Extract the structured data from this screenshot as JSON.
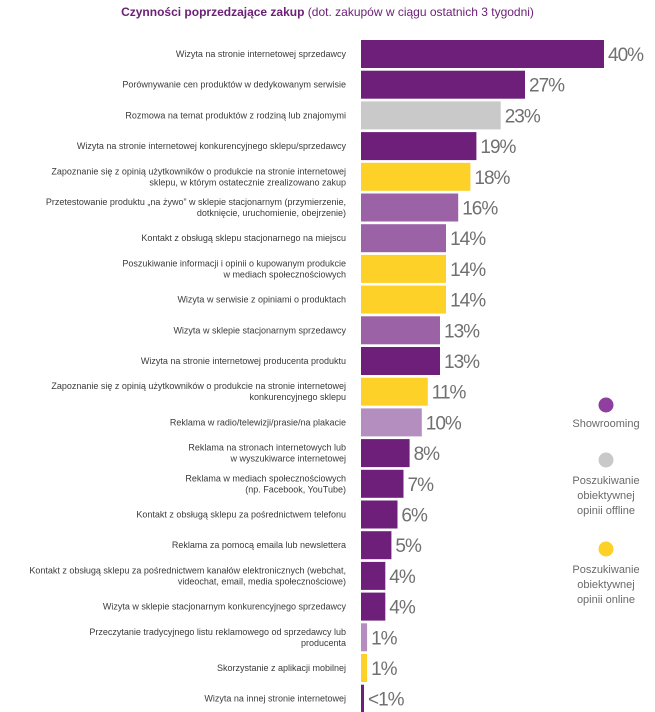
{
  "chart_data": {
    "type": "bar",
    "orientation": "horizontal",
    "title": "Czynności poprzedzające zakup",
    "subtitle": "(dot. zakupów w ciągu ostatnich 3 tygodni)",
    "unit": "%",
    "xlim": [
      0,
      40
    ],
    "colors": {
      "showrooming": "#6d1f7a",
      "showrooming_light": "#9b63a6",
      "showrooming_pale": "#b58ec0",
      "offline": "#c9c9c9",
      "online": "#fdd127"
    },
    "categories": [
      "Wizyta na stronie internetowej sprzedawcy",
      "Porównywanie cen produktów w dedykowanym serwisie",
      "Rozmowa na temat produktów z rodziną lub znajomymi",
      "Wizyta na stronie internetowej konkurencyjnego sklepu/sprzedawcy",
      "Zapoznanie się z opinią użytkowników o produkcie na stronie internetowej\nsklepu, w którym ostatecznie zrealizowano zakup",
      "Przetestowanie produktu „na żywo” w sklepie stacjonarnym (przymierzenie,\ndotknięcie, uruchomienie, obejrzenie)",
      "Kontakt z obsługą sklepu stacjonarnego na miejscu",
      "Poszukiwanie informacji i opinii o kupowanym produkcie\nw mediach społecznościowych",
      "Wizyta w serwisie z opiniami o produktach",
      "Wizyta w sklepie stacjonarnym sprzedawcy",
      "Wizyta na stronie internetowej producenta produktu",
      "Zapoznanie się z opinią użytkowników o produkcie na stronie internetowej\nkonkurencyjnego sklepu",
      "Reklama w radio/telewizji/prasie/na plakacie",
      "Reklama na stronach internetowych lub\nw wyszukiwarce internetowej",
      "Reklama w mediach społecznościowych\n(np. Facebook, YouTube)",
      "Kontakt z obsługą sklepu za pośrednictwem telefonu",
      "Reklama za pomocą emaila lub newslettera",
      "Kontakt z obsługą sklepu za pośrednictwem kanałów elektronicznych (webchat,\nvideochat, email, media społecznościowe)",
      "Wizyta w sklepie stacjonarnym konkurencyjnego sprzedawcy",
      "Przeczytanie tradycyjnego listu reklamowego od sprzedawcy lub\nproducenta",
      "Skorzystanie z aplikacji mobilnej",
      "Wizyta na innej stronie internetowej"
    ],
    "values": [
      40,
      27,
      23,
      19,
      18,
      16,
      14,
      14,
      14,
      13,
      13,
      11,
      10,
      8,
      7,
      6,
      5,
      4,
      4,
      1,
      1,
      0.5
    ],
    "value_labels": [
      "40%",
      "27%",
      "23%",
      "19%",
      "18%",
      "16%",
      "14%",
      "14%",
      "14%",
      "13%",
      "13%",
      "11%",
      "10%",
      "8%",
      "7%",
      "6%",
      "5%",
      "4%",
      "4%",
      "1%",
      "1%",
      "<1%"
    ],
    "bar_colors": [
      "showrooming",
      "showrooming",
      "offline",
      "showrooming",
      "online",
      "showrooming_light",
      "showrooming_light",
      "online",
      "online",
      "showrooming_light",
      "showrooming",
      "online",
      "showrooming_pale",
      "showrooming",
      "showrooming",
      "showrooming",
      "showrooming",
      "showrooming",
      "showrooming",
      "showrooming_pale",
      "online",
      "showrooming"
    ],
    "legend": [
      {
        "label": "Showrooming",
        "color": "#8e3fa0"
      },
      {
        "label": "Poszukiwanie\nobiektywnej\nopinii offline",
        "color": "#c9c9c9"
      },
      {
        "label": "Poszukiwanie\nobiektywnej\nopinii online",
        "color": "#fdd127"
      }
    ]
  }
}
